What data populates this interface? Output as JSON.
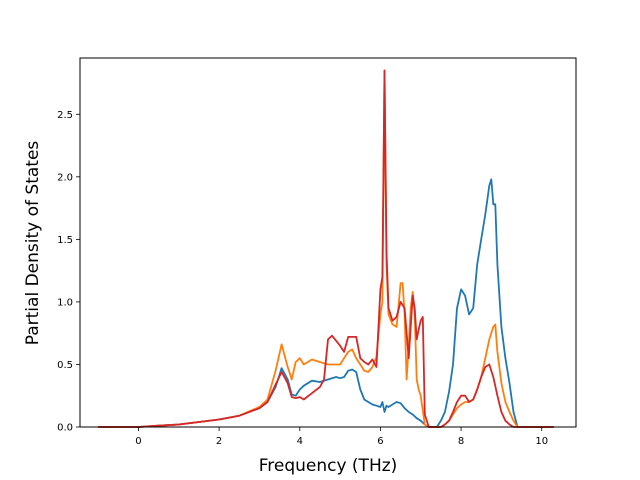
{
  "chart_data": {
    "type": "line",
    "title": "",
    "xlabel": "Frequency (THz)",
    "ylabel": "Partial Density of States",
    "xlim": [
      -1.45,
      10.85
    ],
    "ylim": [
      0.0,
      2.95
    ],
    "xticks": [
      0,
      2,
      4,
      6,
      8,
      10
    ],
    "yticks": [
      0.0,
      0.5,
      1.0,
      1.5,
      2.0,
      2.5
    ],
    "xtick_labels": [
      "0",
      "2",
      "4",
      "6",
      "8",
      "10"
    ],
    "ytick_labels": [
      "0.0",
      "0.5",
      "1.0",
      "1.5",
      "2.0",
      "2.5"
    ],
    "grid": false,
    "legend": "none",
    "series": [
      {
        "color": "#1f77b4",
        "x": [
          -1.0,
          0.0,
          0.5,
          1.0,
          1.5,
          2.0,
          2.5,
          3.0,
          3.2,
          3.4,
          3.55,
          3.7,
          3.8,
          3.9,
          4.0,
          4.1,
          4.3,
          4.5,
          4.7,
          4.9,
          5.0,
          5.1,
          5.2,
          5.3,
          5.4,
          5.5,
          5.6,
          5.7,
          5.8,
          5.9,
          6.0,
          6.05,
          6.1,
          6.15,
          6.2,
          6.3,
          6.4,
          6.5,
          6.6,
          6.7,
          6.8,
          6.9,
          7.0,
          7.1,
          7.2,
          7.3,
          7.4,
          7.5,
          7.6,
          7.7,
          7.8,
          7.9,
          8.0,
          8.1,
          8.2,
          8.3,
          8.4,
          8.5,
          8.6,
          8.7,
          8.75,
          8.8,
          8.85,
          8.9,
          9.0,
          9.1,
          9.2,
          9.3,
          9.4,
          10.3
        ],
        "y": [
          0.0,
          0.0,
          0.01,
          0.02,
          0.04,
          0.06,
          0.09,
          0.15,
          0.2,
          0.32,
          0.47,
          0.38,
          0.26,
          0.25,
          0.3,
          0.33,
          0.37,
          0.36,
          0.38,
          0.4,
          0.39,
          0.4,
          0.45,
          0.46,
          0.44,
          0.3,
          0.22,
          0.2,
          0.18,
          0.17,
          0.16,
          0.2,
          0.12,
          0.17,
          0.16,
          0.18,
          0.2,
          0.19,
          0.15,
          0.12,
          0.1,
          0.07,
          0.05,
          0.02,
          0.0,
          0.0,
          0.0,
          0.05,
          0.12,
          0.28,
          0.5,
          0.95,
          1.1,
          1.05,
          0.9,
          0.95,
          1.3,
          1.5,
          1.7,
          1.93,
          1.98,
          1.78,
          1.78,
          1.3,
          0.8,
          0.55,
          0.35,
          0.12,
          0.0,
          0.0
        ]
      },
      {
        "color": "#ff7f0e",
        "x": [
          -1.0,
          0.0,
          0.5,
          1.0,
          1.5,
          2.0,
          2.5,
          3.0,
          3.2,
          3.4,
          3.55,
          3.7,
          3.8,
          3.9,
          4.0,
          4.1,
          4.3,
          4.5,
          4.7,
          4.9,
          5.0,
          5.1,
          5.2,
          5.3,
          5.4,
          5.5,
          5.6,
          5.7,
          5.8,
          5.9,
          6.0,
          6.05,
          6.1,
          6.15,
          6.2,
          6.3,
          6.4,
          6.5,
          6.55,
          6.6,
          6.65,
          6.7,
          6.75,
          6.8,
          6.85,
          6.9,
          6.95,
          7.0,
          7.1,
          7.2,
          7.3,
          7.4,
          7.5,
          7.6,
          7.7,
          7.8,
          7.9,
          8.0,
          8.1,
          8.2,
          8.3,
          8.4,
          8.5,
          8.6,
          8.7,
          8.8,
          8.85,
          8.9,
          9.0,
          9.1,
          9.2,
          9.3,
          9.4,
          10.3
        ],
        "y": [
          0.0,
          0.0,
          0.01,
          0.02,
          0.04,
          0.06,
          0.09,
          0.16,
          0.22,
          0.45,
          0.66,
          0.48,
          0.38,
          0.52,
          0.55,
          0.5,
          0.54,
          0.52,
          0.5,
          0.5,
          0.5,
          0.55,
          0.6,
          0.62,
          0.55,
          0.5,
          0.45,
          0.44,
          0.48,
          0.56,
          0.9,
          1.0,
          2.85,
          1.3,
          0.9,
          0.82,
          0.8,
          1.15,
          1.15,
          0.9,
          0.38,
          0.65,
          0.95,
          1.08,
          0.9,
          0.38,
          0.3,
          0.25,
          0.02,
          0.0,
          0.0,
          0.0,
          0.0,
          0.02,
          0.05,
          0.1,
          0.15,
          0.18,
          0.2,
          0.2,
          0.22,
          0.3,
          0.4,
          0.55,
          0.7,
          0.8,
          0.82,
          0.6,
          0.35,
          0.2,
          0.12,
          0.05,
          0.0,
          0.0
        ]
      },
      {
        "color": "#d62728",
        "x": [
          -1.0,
          0.0,
          0.5,
          1.0,
          1.5,
          2.0,
          2.5,
          3.0,
          3.2,
          3.4,
          3.55,
          3.7,
          3.8,
          3.9,
          4.0,
          4.1,
          4.3,
          4.5,
          4.6,
          4.7,
          4.8,
          5.0,
          5.1,
          5.2,
          5.4,
          5.5,
          5.6,
          5.7,
          5.8,
          5.9,
          6.0,
          6.05,
          6.1,
          6.15,
          6.2,
          6.3,
          6.4,
          6.5,
          6.6,
          6.7,
          6.75,
          6.8,
          6.85,
          6.9,
          6.95,
          7.0,
          7.05,
          7.1,
          7.2,
          7.3,
          7.4,
          7.5,
          7.6,
          7.7,
          7.8,
          7.9,
          8.0,
          8.1,
          8.2,
          8.3,
          8.4,
          8.5,
          8.6,
          8.7,
          8.8,
          8.9,
          9.0,
          9.1,
          9.2,
          9.3,
          9.4,
          10.3
        ],
        "y": [
          0.0,
          0.0,
          0.01,
          0.02,
          0.04,
          0.06,
          0.09,
          0.15,
          0.2,
          0.34,
          0.44,
          0.35,
          0.24,
          0.23,
          0.24,
          0.22,
          0.27,
          0.32,
          0.38,
          0.7,
          0.73,
          0.65,
          0.6,
          0.72,
          0.72,
          0.55,
          0.52,
          0.5,
          0.54,
          0.48,
          1.1,
          1.2,
          2.85,
          1.4,
          0.95,
          0.85,
          0.88,
          1.0,
          0.95,
          0.55,
          0.8,
          1.05,
          0.95,
          0.7,
          0.78,
          0.85,
          0.88,
          0.1,
          0.0,
          0.0,
          0.0,
          0.0,
          0.02,
          0.05,
          0.12,
          0.2,
          0.25,
          0.25,
          0.2,
          0.22,
          0.3,
          0.4,
          0.48,
          0.5,
          0.4,
          0.25,
          0.12,
          0.05,
          0.02,
          0.0,
          0.0,
          0.0
        ]
      }
    ]
  }
}
